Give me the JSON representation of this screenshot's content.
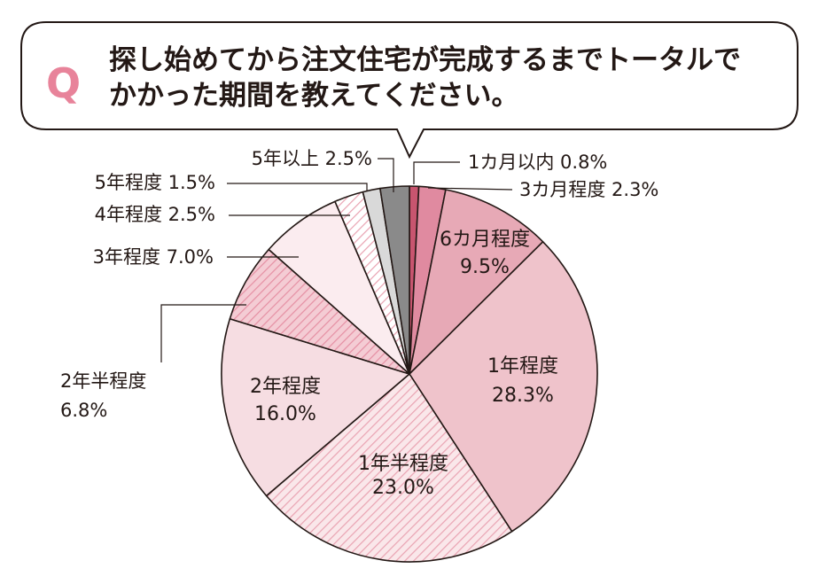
{
  "question": {
    "marker": "Q",
    "line1": "探し始めてから注文住宅が完成するまでトータルで",
    "line2": "かかった期間を教えてください。"
  },
  "chart_data": {
    "type": "pie",
    "unit": "%",
    "start": "12 o'clock",
    "direction": "clockwise",
    "slices": [
      {
        "label": "1カ月以内",
        "value": 0.8,
        "display": "1カ月以内 0.8%",
        "color": "#c8556f",
        "pattern": "solid",
        "label_placement": "outside"
      },
      {
        "label": "3カ月程度",
        "value": 2.3,
        "display": "3カ月程度 2.3%",
        "color": "#e08aa0",
        "pattern": "solid",
        "label_placement": "outside"
      },
      {
        "label": "6カ月程度",
        "value": 9.5,
        "display": "9.5%",
        "color": "#e7a9b6",
        "pattern": "solid",
        "label_placement": "inside"
      },
      {
        "label": "1年程度",
        "value": 28.3,
        "display": "28.3%",
        "color": "#efc3cb",
        "pattern": "solid",
        "label_placement": "inside"
      },
      {
        "label": "1年半程度",
        "value": 23.0,
        "display": "23.0%",
        "color": "#fae7ea",
        "stripe": "#e9a3b2",
        "pattern": "hatched",
        "label_placement": "inside"
      },
      {
        "label": "2年程度",
        "value": 16.0,
        "display": "16.0%",
        "color": "#f6dde2",
        "pattern": "solid",
        "label_placement": "inside"
      },
      {
        "label": "2年半程度",
        "value": 6.8,
        "display": "6.8%",
        "color": "#f4ccd4",
        "stripe": "#e58fa3",
        "pattern": "hatched",
        "label_placement": "outside"
      },
      {
        "label": "3年程度",
        "value": 7.0,
        "display": "3年程度 7.0%",
        "color": "#fbecef",
        "pattern": "solid",
        "label_placement": "outside"
      },
      {
        "label": "4年程度",
        "value": 2.5,
        "display": "4年程度 2.5%",
        "color": "#ffffff",
        "stripe": "#e9a3b2",
        "pattern": "hatched",
        "label_placement": "outside"
      },
      {
        "label": "5年程度",
        "value": 1.5,
        "display": "5年程度 1.5%",
        "color": "#d9d9d9",
        "pattern": "solid",
        "label_placement": "outside"
      },
      {
        "label": "5年以上",
        "value": 2.5,
        "display": "5年以上 2.5%",
        "color": "#8a8a8a",
        "pattern": "solid",
        "label_placement": "outside"
      }
    ]
  }
}
